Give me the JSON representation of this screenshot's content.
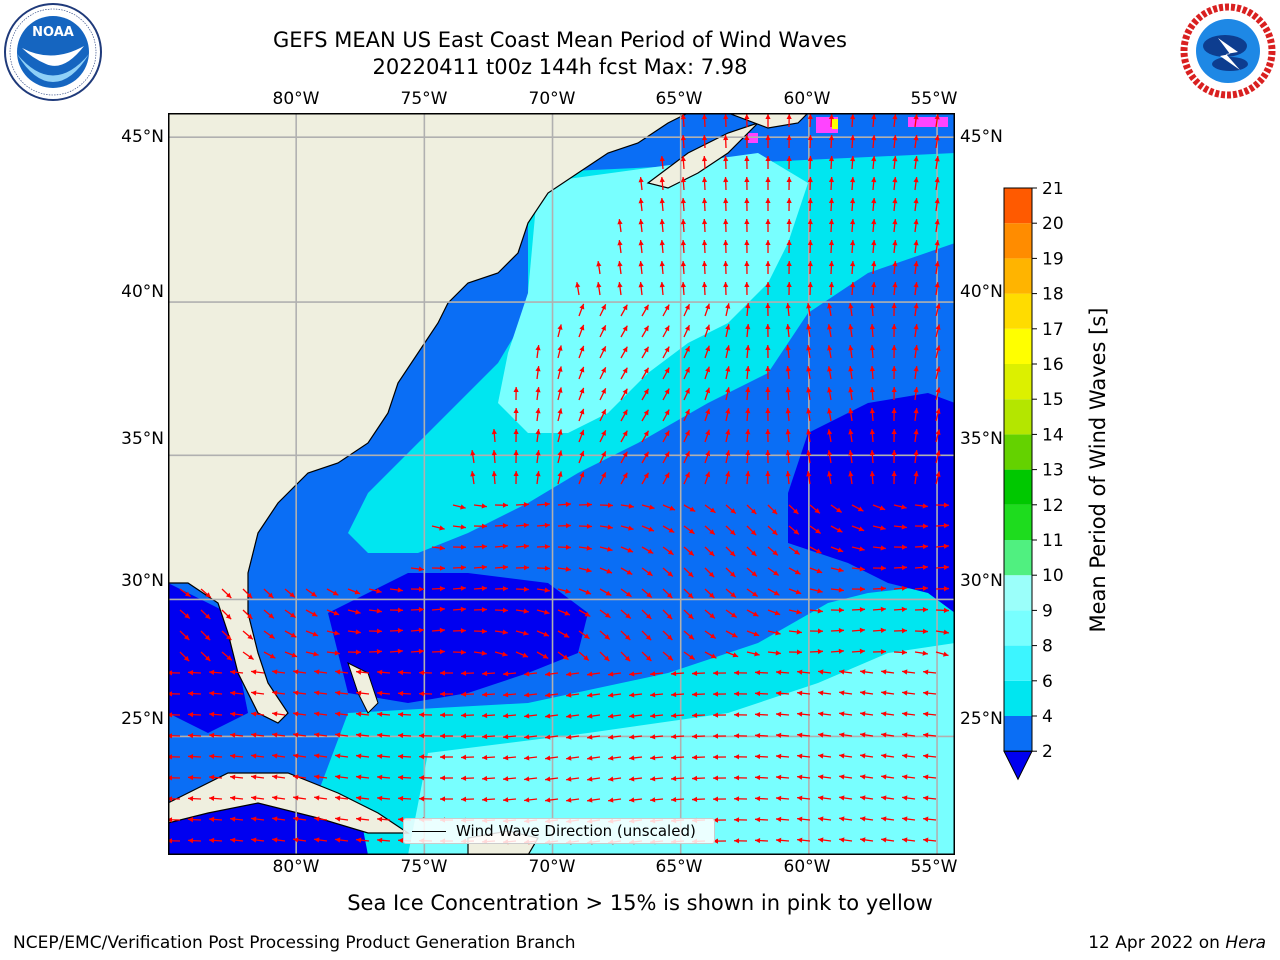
{
  "title": {
    "line1": "GEFS MEAN US East Coast Mean Period of Wind Waves",
    "line2": "20220411 t00z 144h fcst   Max: 7.98"
  },
  "logos": {
    "left": {
      "name": "noaa-logo",
      "text": "NOAA",
      "ring_text": "NATIONAL OCEANIC AND ATMOSPHERIC ADMINISTRATION · U.S. DEPARTMENT OF COMMERCE"
    },
    "right": {
      "name": "nws-logo",
      "ring_text": "NATIONAL WEATHER SERVICE"
    }
  },
  "map": {
    "lon_ticks_top": [
      "80°W",
      "75°W",
      "70°W",
      "65°W",
      "60°W",
      "55°W"
    ],
    "lon_ticks_bottom": [
      "80°W",
      "75°W",
      "70°W",
      "65°W",
      "60°W",
      "55°W"
    ],
    "lat_ticks_left": [
      "45°N",
      "40°N",
      "35°N",
      "30°N",
      "25°N"
    ],
    "lat_ticks_right": [
      "45°N",
      "40°N",
      "35°N",
      "30°N",
      "25°N"
    ],
    "lon_values": [
      -80,
      -75,
      -70,
      -65,
      -60,
      -55
    ],
    "lat_values": [
      45,
      40,
      35,
      30,
      25
    ],
    "extent": {
      "lon_min": -85,
      "lon_max": -54.3,
      "lat_min": 20.5,
      "lat_max": 45.7
    },
    "land_color": "#efefdf",
    "coast_color": "#000000",
    "grid_color": "#b0b0b0",
    "arrow_color": "#ff0000"
  },
  "legend": {
    "label": "Wind Wave Direction (unscaled)"
  },
  "colorbar": {
    "label": "Mean Period of Wind Waves [s]",
    "ticks": [
      "21",
      "20",
      "19",
      "18",
      "17",
      "16",
      "15",
      "14",
      "13",
      "12",
      "11",
      "10",
      "9",
      "8",
      "6",
      "4",
      "2"
    ],
    "levels": [
      2,
      4,
      6,
      8,
      9,
      10,
      11,
      12,
      13,
      14,
      15,
      16,
      17,
      18,
      19,
      20,
      21
    ],
    "colors": [
      "#0a6ef5",
      "#00e6f0",
      "#3cf5ff",
      "#78ffff",
      "#9bfffa",
      "#50f080",
      "#1edc1e",
      "#00c800",
      "#64d200",
      "#b4e600",
      "#dcf000",
      "#ffff00",
      "#ffdc00",
      "#ffb400",
      "#ff8c00",
      "#ff5a00",
      "#ff2800",
      "#ff0000"
    ],
    "under_color": "#0000f0"
  },
  "caption": "Sea Ice Concentration > 15% is shown in pink to yellow",
  "footer": {
    "left": "NCEP/EMC/Verification Post Processing Product Generation Branch",
    "right_date": "12 Apr 2022 on ",
    "right_host": "Hera"
  }
}
